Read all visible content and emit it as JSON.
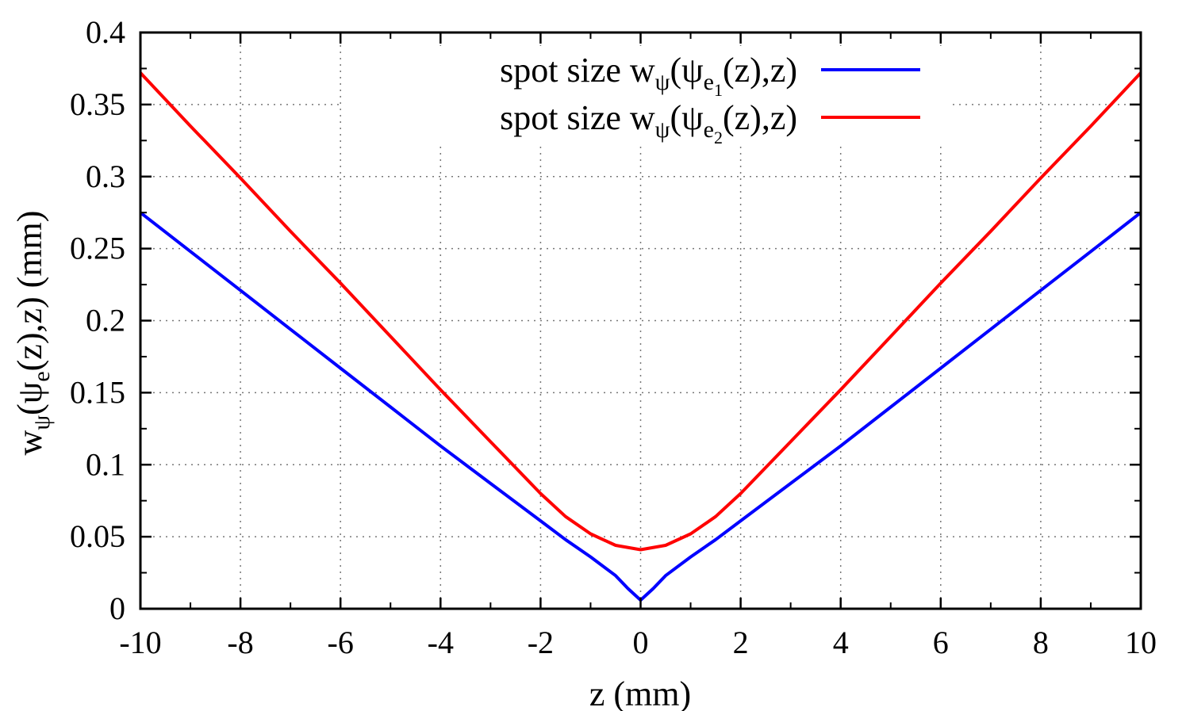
{
  "chart_data": {
    "type": "line",
    "title": "",
    "xlabel": "z (mm)",
    "ylabel": {
      "base": "w",
      "sub_psi": "ψ",
      "open": "(",
      "psi": "ψ",
      "sub_e": "e",
      "rest": "(z),z) (mm)"
    },
    "xlim": [
      -10,
      10
    ],
    "ylim": [
      0,
      0.4
    ],
    "x_ticks": [
      "-10",
      "-8",
      "-6",
      "-4",
      "-2",
      "0",
      "2",
      "4",
      "6",
      "8",
      "10"
    ],
    "y_ticks": [
      "0",
      "0.05",
      "0.1",
      "0.15",
      "0.2",
      "0.25",
      "0.3",
      "0.35",
      "0.4"
    ],
    "grid": true,
    "legend_position": "top-center",
    "series": [
      {
        "name": "spot size wψ(ψe1(z),z)",
        "legend": {
          "prefix": "spot size w",
          "sub_psi": "ψ",
          "open": "(",
          "psi": "ψ",
          "sub_e": "e",
          "subsub": "1",
          "rest": "(z),z)"
        },
        "color": "#0000ff",
        "x": [
          -10,
          -9,
          -8,
          -7,
          -6,
          -5,
          -4,
          -3,
          -2,
          -1.5,
          -1,
          -0.5,
          -0.25,
          0,
          0.25,
          0.5,
          1,
          1.5,
          2,
          3,
          4,
          5,
          6,
          7,
          8,
          9,
          10
        ],
        "y": [
          0.275,
          0.248,
          0.221,
          0.194,
          0.167,
          0.14,
          0.113,
          0.087,
          0.061,
          0.048,
          0.036,
          0.023,
          0.014,
          0.006,
          0.014,
          0.023,
          0.036,
          0.048,
          0.061,
          0.087,
          0.113,
          0.14,
          0.167,
          0.194,
          0.221,
          0.248,
          0.275
        ]
      },
      {
        "name": "spot size wψ(ψe2(z),z)",
        "legend": {
          "prefix": "spot size w",
          "sub_psi": "ψ",
          "open": "(",
          "psi": "ψ",
          "sub_e": "e",
          "subsub": "2",
          "rest": "(z),z)"
        },
        "color": "#ff0000",
        "x": [
          -10,
          -9,
          -8,
          -7,
          -6,
          -5,
          -4,
          -3,
          -2,
          -1.5,
          -1,
          -0.5,
          0,
          0.5,
          1,
          1.5,
          2,
          3,
          4,
          5,
          6,
          7,
          8,
          9,
          10
        ],
        "y": [
          0.372,
          0.335,
          0.299,
          0.262,
          0.226,
          0.189,
          0.152,
          0.116,
          0.08,
          0.064,
          0.052,
          0.044,
          0.041,
          0.044,
          0.052,
          0.064,
          0.08,
          0.116,
          0.152,
          0.189,
          0.226,
          0.262,
          0.299,
          0.335,
          0.372
        ]
      }
    ]
  }
}
